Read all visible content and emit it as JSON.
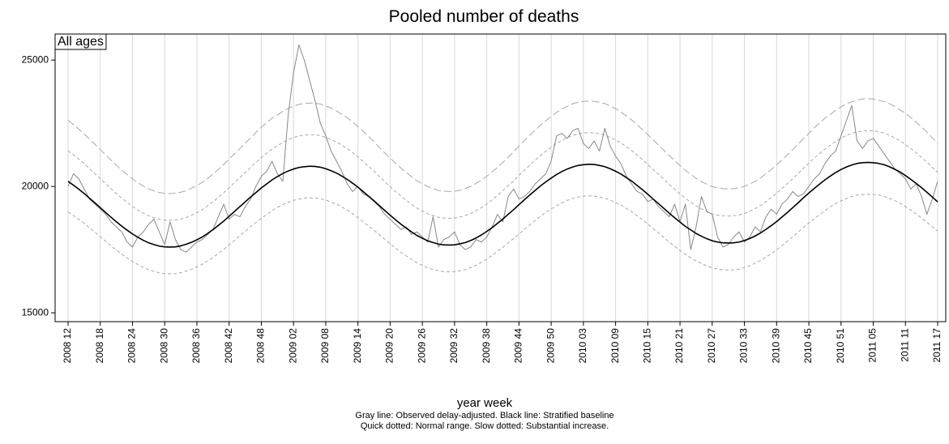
{
  "chart_data": {
    "type": "line",
    "title": "Pooled number of deaths",
    "panel_label": "All ages",
    "x_label": "year week",
    "notes": [
      "Gray line: Observed delay-adjusted. Black line: Stratified baseline",
      "Quick dotted: Normal range. Slow dotted: Substantial increase."
    ],
    "categories": [
      "2008 12",
      null,
      null,
      null,
      null,
      null,
      "2008 18",
      null,
      null,
      null,
      null,
      null,
      "2008 24",
      null,
      null,
      null,
      null,
      null,
      "2008 30",
      null,
      null,
      null,
      null,
      null,
      "2008 36",
      null,
      null,
      null,
      null,
      null,
      "2008 42",
      null,
      null,
      null,
      null,
      null,
      "2008 48",
      null,
      null,
      null,
      null,
      null,
      "2009 02",
      null,
      null,
      null,
      null,
      null,
      "2009 08",
      null,
      null,
      null,
      null,
      null,
      "2009 14",
      null,
      null,
      null,
      null,
      null,
      "2009 20",
      null,
      null,
      null,
      null,
      null,
      "2009 26",
      null,
      null,
      null,
      null,
      null,
      "2009 32",
      null,
      null,
      null,
      null,
      null,
      "2009 38",
      null,
      null,
      null,
      null,
      null,
      "2009 44",
      null,
      null,
      null,
      null,
      null,
      "2009 50",
      null,
      null,
      null,
      null,
      null,
      "2010 03",
      null,
      null,
      null,
      null,
      null,
      "2010 09",
      null,
      null,
      null,
      null,
      null,
      "2010 15",
      null,
      null,
      null,
      null,
      null,
      "2010 21",
      null,
      null,
      null,
      null,
      null,
      "2010 27",
      null,
      null,
      null,
      null,
      null,
      "2010 33",
      null,
      null,
      null,
      null,
      null,
      "2010 39",
      null,
      null,
      null,
      null,
      null,
      "2010 45",
      null,
      null,
      null,
      null,
      null,
      "2010 51",
      null,
      null,
      null,
      null,
      null,
      "2011 05",
      null,
      null,
      null,
      null,
      null,
      "2011 11",
      null,
      null,
      null,
      null,
      null,
      "2011 17"
    ],
    "series": [
      {
        "color": "#a8a8a8",
        "dash": "slow",
        "values": [
          22620,
          22450,
          22270,
          22080,
          21870,
          21670,
          21460,
          21250,
          21040,
          20840,
          20650,
          20470,
          20300,
          20150,
          20010,
          19910,
          19820,
          19760,
          19730,
          19720,
          19730,
          19770,
          19830,
          19930,
          20030,
          20160,
          20320,
          20490,
          20680,
          20870,
          21080,
          21290,
          21500,
          21710,
          21920,
          22140,
          22340,
          22520,
          22700,
          22830,
          22970,
          23090,
          23170,
          23250,
          23280,
          23300,
          23290,
          23260,
          23180,
          23100,
          22990,
          22850,
          22720,
          22550,
          22370,
          22170,
          21970,
          21770,
          21540,
          21330,
          21120,
          20920,
          20730,
          20550,
          20380,
          20220,
          20110,
          19990,
          19920,
          19840,
          19810,
          19800,
          19810,
          19850,
          19920,
          20000,
          20120,
          20240,
          20400,
          20570,
          20760,
          20950,
          21160,
          21360,
          21600,
          21810,
          22020,
          22220,
          22420,
          22600,
          22770,
          22930,
          23070,
          23170,
          23270,
          23330,
          23360,
          23380,
          23370,
          23330,
          23280,
          23180,
          23080,
          22950,
          22790,
          22630,
          22440,
          22250,
          22050,
          21840,
          21640,
          21430,
          21220,
          21020,
          20830,
          20640,
          20480,
          20320,
          20190,
          20090,
          19990,
          19940,
          19910,
          19900,
          19910,
          19940,
          20000,
          20100,
          20200,
          20340,
          20500,
          20670,
          20850,
          21050,
          21250,
          21460,
          21670,
          21890,
          22100,
          22320,
          22510,
          22700,
          22850,
          23010,
          23150,
          23270,
          23350,
          23410,
          23460,
          23470,
          23460,
          23410,
          23360,
          23280,
          23160,
          23030,
          22890,
          22720,
          22540,
          22350,
          22150,
          21920,
          21710
        ]
      },
      {
        "color": "#a8a8a8",
        "dash": "quick",
        "values": [
          21410,
          21250,
          21080,
          20900,
          20700,
          20510,
          20310,
          20110,
          19910,
          19720,
          19540,
          19370,
          19210,
          19070,
          18940,
          18840,
          18760,
          18700,
          18670,
          18660,
          18670,
          18710,
          18770,
          18860,
          18960,
          19080,
          19230,
          19390,
          19570,
          19750,
          19950,
          20150,
          20350,
          20550,
          20750,
          20950,
          21140,
          21310,
          21480,
          21610,
          21740,
          21850,
          21930,
          22000,
          22030,
          22050,
          22040,
          22010,
          21940,
          21860,
          21760,
          21630,
          21500,
          21340,
          21170,
          20980,
          20790,
          20600,
          20390,
          20190,
          19990,
          19800,
          19620,
          19450,
          19290,
          19140,
          19030,
          18920,
          18850,
          18780,
          18750,
          18740,
          18750,
          18790,
          18850,
          18930,
          19040,
          19160,
          19310,
          19470,
          19650,
          19830,
          20030,
          20220,
          20440,
          20640,
          20840,
          21030,
          21220,
          21390,
          21550,
          21700,
          21830,
          21930,
          22020,
          22080,
          22110,
          22130,
          22120,
          22080,
          22030,
          21940,
          21840,
          21720,
          21570,
          21420,
          21240,
          21060,
          20870,
          20670,
          20480,
          20280,
          20080,
          19890,
          19710,
          19530,
          19380,
          19230,
          19110,
          19010,
          18920,
          18870,
          18840,
          18830,
          18840,
          18870,
          18930,
          19020,
          19120,
          19250,
          19400,
          19560,
          19730,
          19920,
          20110,
          20310,
          20510,
          20720,
          20920,
          21120,
          21300,
          21480,
          21630,
          21780,
          21910,
          22020,
          22100,
          22160,
          22200,
          22210,
          22200,
          22160,
          22110,
          22030,
          21920,
          21800,
          21660,
          21500,
          21330,
          21150,
          20960,
          20750,
          20550
        ]
      },
      {
        "color": "#a8a8a8",
        "dash": "quick",
        "values": [
          18990,
          18850,
          18700,
          18540,
          18360,
          18190,
          18010,
          17830,
          17650,
          17480,
          17320,
          17170,
          17030,
          16910,
          16800,
          16700,
          16640,
          16580,
          16550,
          16540,
          16550,
          16590,
          16650,
          16720,
          16820,
          16920,
          17050,
          17190,
          17350,
          17510,
          17690,
          17870,
          18050,
          18230,
          18410,
          18570,
          18740,
          18890,
          19040,
          19170,
          19280,
          19370,
          19450,
          19500,
          19530,
          19550,
          19540,
          19510,
          19460,
          19380,
          19300,
          19190,
          19060,
          18920,
          18770,
          18600,
          18430,
          18260,
          18090,
          17910,
          17730,
          17560,
          17400,
          17250,
          17110,
          16980,
          16870,
          16780,
          16710,
          16660,
          16630,
          16620,
          16630,
          16670,
          16710,
          16790,
          16880,
          17000,
          17130,
          17270,
          17430,
          17590,
          17770,
          17940,
          18120,
          18300,
          18480,
          18650,
          18820,
          18970,
          19110,
          19240,
          19350,
          19450,
          19520,
          19580,
          19610,
          19630,
          19620,
          19580,
          19530,
          19460,
          19360,
          19260,
          19130,
          19000,
          18840,
          18680,
          18510,
          18330,
          18160,
          17980,
          17800,
          17630,
          17470,
          17310,
          17180,
          17050,
          16950,
          16850,
          16780,
          16730,
          16700,
          16690,
          16700,
          16730,
          16790,
          16860,
          16960,
          17070,
          17200,
          17340,
          17490,
          17660,
          17830,
          18010,
          18190,
          18380,
          18560,
          18720,
          18880,
          19040,
          19190,
          19320,
          19430,
          19520,
          19600,
          19660,
          19680,
          19690,
          19680,
          19660,
          19610,
          19530,
          19440,
          19340,
          19200,
          19060,
          18910,
          18750,
          18580,
          18410,
          18230
        ]
      },
      {
        "color": "#888888",
        "dash": "solid",
        "values": [
          20000,
          20500,
          20300,
          19900,
          19500,
          19300,
          19100,
          18900,
          18600,
          18400,
          18200,
          17800,
          17600,
          18000,
          18200,
          18500,
          18700,
          18200,
          17700,
          18600,
          17900,
          17500,
          17400,
          17600,
          17800,
          17900,
          18100,
          18300,
          18800,
          19300,
          18700,
          18900,
          18800,
          19200,
          19500,
          20000,
          20400,
          20600,
          21000,
          20500,
          20200,
          22800,
          24500,
          25600,
          25000,
          24200,
          23400,
          22500,
          22000,
          21400,
          21000,
          20600,
          20100,
          19800,
          20000,
          19700,
          19600,
          19400,
          19200,
          18900,
          18700,
          18500,
          18300,
          18400,
          18100,
          18200,
          18000,
          17800,
          18800,
          17600,
          17900,
          18000,
          18200,
          17700,
          17500,
          17600,
          17900,
          17800,
          18000,
          18400,
          18900,
          18600,
          19600,
          19900,
          19500,
          19600,
          19800,
          20100,
          20300,
          20500,
          21000,
          22000,
          22100,
          21900,
          22200,
          22300,
          21700,
          21500,
          21800,
          21400,
          22300,
          21600,
          21200,
          20900,
          20400,
          20100,
          19800,
          19700,
          19400,
          19500,
          19200,
          19000,
          18800,
          19300,
          18600,
          19300,
          17500,
          18400,
          19600,
          19000,
          18900,
          18000,
          17600,
          17700,
          18000,
          18200,
          17800,
          18000,
          18400,
          18200,
          18800,
          19100,
          18900,
          19300,
          19500,
          19800,
          19600,
          19700,
          20000,
          20300,
          20500,
          20900,
          21200,
          21400,
          22000,
          22600,
          23200,
          21800,
          21500,
          21800,
          21900,
          21600,
          21300,
          21000,
          20700,
          20500,
          20300,
          19900,
          20100,
          19600,
          18900,
          19500,
          20200
        ]
      },
      {
        "color": "#000000",
        "dash": "solid",
        "width": 1.6,
        "values": [
          20200,
          20050,
          19890,
          19720,
          19530,
          19350,
          19160,
          18970,
          18780,
          18600,
          18430,
          18270,
          18120,
          17990,
          17870,
          17770,
          17700,
          17640,
          17610,
          17600,
          17610,
          17650,
          17710,
          17790,
          17890,
          18000,
          18140,
          18290,
          18460,
          18630,
          18820,
          19010,
          19200,
          19390,
          19580,
          19760,
          19940,
          20100,
          20260,
          20390,
          20510,
          20610,
          20690,
          20750,
          20780,
          20800,
          20790,
          20760,
          20700,
          20620,
          20530,
          20410,
          20280,
          20130,
          19970,
          19790,
          19610,
          19430,
          19240,
          19050,
          18860,
          18680,
          18510,
          18350,
          18200,
          18060,
          17950,
          17850,
          17780,
          17720,
          17690,
          17680,
          17690,
          17730,
          17780,
          17860,
          17960,
          18080,
          18220,
          18370,
          18540,
          18710,
          18900,
          19080,
          19280,
          19470,
          19660,
          19840,
          20020,
          20180,
          20330,
          20470,
          20590,
          20690,
          20770,
          20830,
          20860,
          20880,
          20870,
          20830,
          20780,
          20700,
          20600,
          20490,
          20350,
          20210,
          20040,
          19870,
          19690,
          19500,
          19320,
          19130,
          18940,
          18760,
          18590,
          18420,
          18280,
          18140,
          18030,
          17930,
          17850,
          17800,
          17770,
          17760,
          17770,
          17800,
          17860,
          17940,
          18040,
          18160,
          18300,
          18450,
          18610,
          18790,
          18970,
          19160,
          19350,
          19550,
          19740,
          19920,
          20090,
          20260,
          20410,
          20550,
          20670,
          20770,
          20850,
          20910,
          20940,
          20950,
          20940,
          20910,
          20860,
          20780,
          20680,
          20570,
          20430,
          20280,
          20120,
          19950,
          19770,
          19580,
          19390
        ]
      }
    ],
    "ylim": [
      14650,
      26030
    ],
    "yticks": [
      15000,
      20000,
      25000
    ],
    "grid": true
  }
}
